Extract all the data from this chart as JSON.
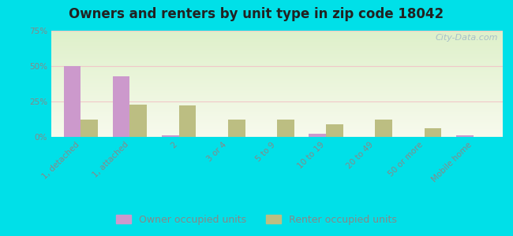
{
  "title": "Owners and renters by unit type in zip code 18042",
  "categories": [
    "1, detached",
    "1, attached",
    "2",
    "3 or 4",
    "5 to 9",
    "10 to 19",
    "20 to 49",
    "50 or more",
    "Mobile home"
  ],
  "owner_values": [
    50,
    43,
    1,
    0,
    0,
    2,
    0,
    0,
    1
  ],
  "renter_values": [
    12,
    23,
    22,
    12,
    12,
    9,
    12,
    6,
    0
  ],
  "owner_color": "#cc99cc",
  "renter_color": "#bcbe82",
  "ylim": [
    0,
    75
  ],
  "yticks": [
    0,
    25,
    50,
    75
  ],
  "ytick_labels": [
    "0%",
    "25%",
    "50%",
    "75%"
  ],
  "background_outer": "#00e0e8",
  "grid_color": "#f0c8c8",
  "title_fontsize": 12,
  "tick_fontsize": 7.5,
  "legend_fontsize": 9,
  "bar_width": 0.35,
  "watermark_text": "City-Data.com",
  "watermark_color": "#a8c0c8",
  "axis_color": "#888888"
}
